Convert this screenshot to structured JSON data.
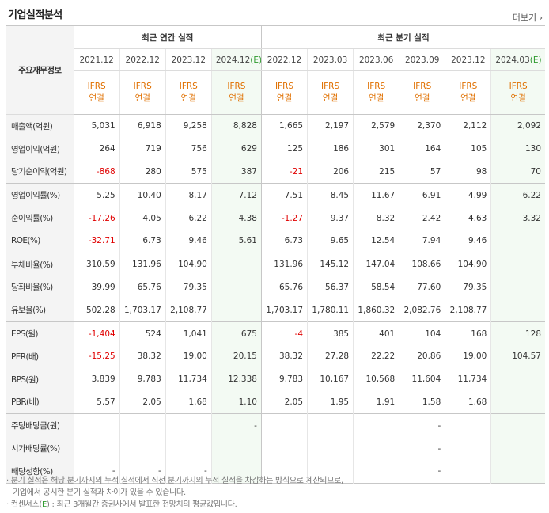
{
  "title": "기업실적분석",
  "more_label": "더보기",
  "corner_label": "주요재무정보",
  "group_annual": "최근 연간 실적",
  "group_quarter": "최근 분기 실적",
  "periods": [
    "2021.12",
    "2022.12",
    "2023.12",
    "2024.12(E)",
    "2022.12",
    "2023.03",
    "2023.06",
    "2023.09",
    "2023.12",
    "2024.03(E)"
  ],
  "standard_top": "IFRS",
  "standard_bottom": "연결",
  "rows": [
    {
      "label": "매출액(억원)",
      "values": [
        "5,031",
        "6,918",
        "9,258",
        "8,828",
        "1,665",
        "2,197",
        "2,579",
        "2,370",
        "2,112",
        "2,092"
      ]
    },
    {
      "label": "영업이익(억원)",
      "values": [
        "264",
        "719",
        "756",
        "629",
        "125",
        "186",
        "301",
        "164",
        "105",
        "130"
      ]
    },
    {
      "label": "당기순이익(억원)",
      "values": [
        "-868",
        "280",
        "575",
        "387",
        "-21",
        "206",
        "215",
        "57",
        "98",
        "70"
      ]
    },
    {
      "label": "영업이익률(%)",
      "values": [
        "5.25",
        "10.40",
        "8.17",
        "7.12",
        "7.51",
        "8.45",
        "11.67",
        "6.91",
        "4.99",
        "6.22"
      ]
    },
    {
      "label": "순이익률(%)",
      "values": [
        "-17.26",
        "4.05",
        "6.22",
        "4.38",
        "-1.27",
        "9.37",
        "8.32",
        "2.42",
        "4.63",
        "3.32"
      ]
    },
    {
      "label": "ROE(%)",
      "values": [
        "-32.71",
        "6.73",
        "9.46",
        "5.61",
        "6.73",
        "9.65",
        "12.54",
        "7.94",
        "9.46",
        ""
      ]
    },
    {
      "label": "부채비율(%)",
      "values": [
        "310.59",
        "131.96",
        "104.90",
        "",
        "131.96",
        "145.12",
        "147.04",
        "108.66",
        "104.90",
        ""
      ]
    },
    {
      "label": "당좌비율(%)",
      "values": [
        "39.99",
        "65.76",
        "79.35",
        "",
        "65.76",
        "56.37",
        "58.54",
        "77.60",
        "79.35",
        ""
      ]
    },
    {
      "label": "유보율(%)",
      "values": [
        "502.28",
        "1,703.17",
        "2,108.77",
        "",
        "1,703.17",
        "1,780.11",
        "1,860.32",
        "2,082.76",
        "2,108.77",
        ""
      ]
    },
    {
      "label": "EPS(원)",
      "values": [
        "-1,404",
        "524",
        "1,041",
        "675",
        "-4",
        "385",
        "401",
        "104",
        "168",
        "128"
      ]
    },
    {
      "label": "PER(배)",
      "values": [
        "-15.25",
        "38.32",
        "19.00",
        "20.15",
        "38.32",
        "27.28",
        "22.22",
        "20.86",
        "19.00",
        "104.57"
      ]
    },
    {
      "label": "BPS(원)",
      "values": [
        "3,839",
        "9,783",
        "11,734",
        "12,338",
        "9,783",
        "10,167",
        "10,568",
        "11,604",
        "11,734",
        ""
      ]
    },
    {
      "label": "PBR(배)",
      "values": [
        "5.57",
        "2.05",
        "1.68",
        "1.10",
        "2.05",
        "1.95",
        "1.91",
        "1.58",
        "1.68",
        ""
      ]
    },
    {
      "label": "주당배당금(원)",
      "values": [
        "",
        "",
        "",
        "-",
        "",
        "",
        "",
        "-",
        "",
        ""
      ]
    },
    {
      "label": "시가배당률(%)",
      "values": [
        "",
        "",
        "",
        "",
        "",
        "",
        "",
        "-",
        "",
        ""
      ]
    },
    {
      "label": "배당성향(%)",
      "values": [
        "-",
        "-",
        "-",
        "",
        "",
        "",
        "",
        "-",
        "",
        ""
      ]
    }
  ],
  "notes": {
    "line1": "· 분기 실적은 해당 분기까지의 누적 실적에서 직전 분기까지의 누적 실적을 차감하는 방식으로 계산되므로,",
    "line2": "기업에서 공시한 분기 실적과 차이가 있을 수 있습니다.",
    "line3_prefix": "· 컨센서스(",
    "line3_e": "E",
    "line3_suffix": ") : 최근 3개월간 증권사에서 발표한 전망치의 평균값입니다."
  }
}
